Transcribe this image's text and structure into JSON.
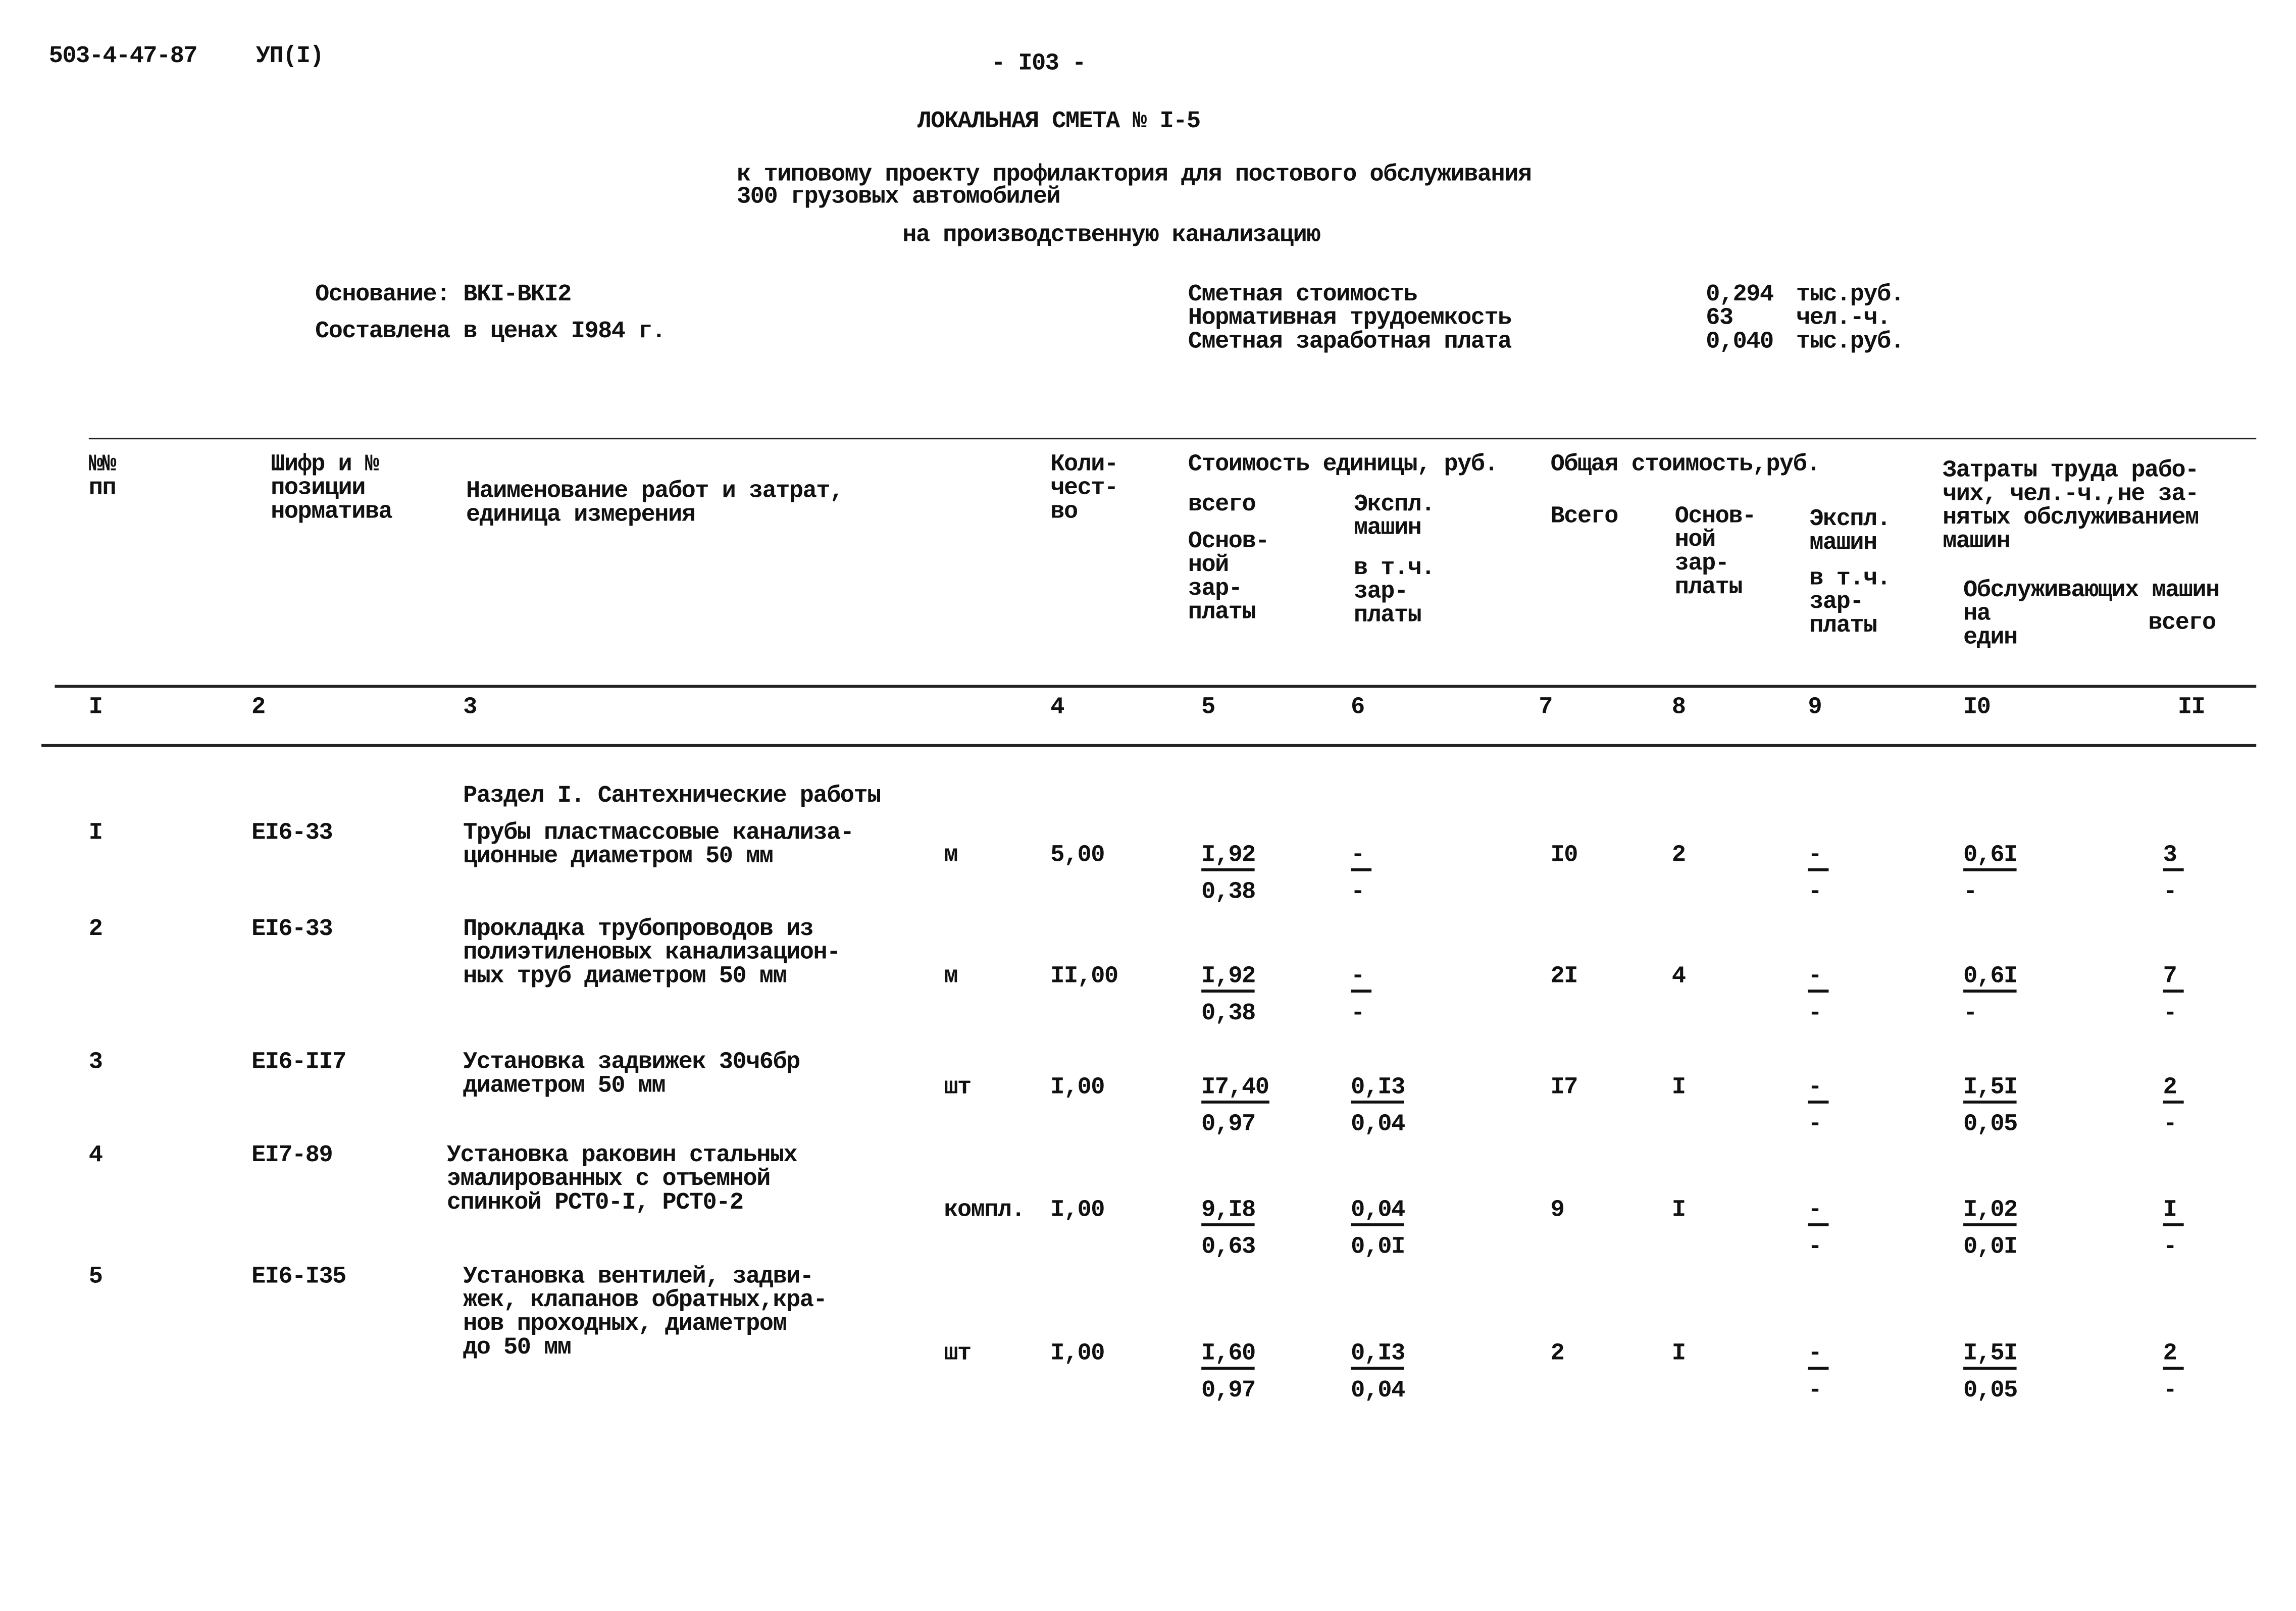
{
  "header": {
    "doc_code": "503-4-47-87",
    "album": "УП(I)",
    "page_no": "- I03 -"
  },
  "title": "ЛОКАЛЬНАЯ СМЕТА № I-5",
  "subtitle_lines": [
    "к типовому проекту профилактория для постового обслуживания",
    "300 грузовых автомобилей"
  ],
  "subtitle2": "на производственную канализацию",
  "basis": "Основание: ВКI-ВКI2",
  "prices": "Составлена в ценах I984 г.",
  "summary": [
    {
      "label": "Сметная стоимость",
      "value": "0,294",
      "unit": "тыс.руб."
    },
    {
      "label": "Нормативная трудоемкость",
      "value": "63",
      "unit": "чел.-ч."
    },
    {
      "label": "Сметная заработная плата",
      "value": "0,040",
      "unit": "тыс.руб."
    }
  ],
  "columns": {
    "c1": "№№\nпп",
    "c2": "Шифр и №\nпозиции\nнорматива",
    "c3": "Наименование работ и затрат,\nединица измерения",
    "c4": "Коли-\nчест-\nво",
    "unit_cost": "Стоимость единицы, руб.",
    "total_cost": "Общая стоимость,руб.",
    "labor": "Затраты труда рабо-\nчих, чел.-ч.,не за-\nнятых обслуживанием\nмашин",
    "c5": "всего",
    "c5b": "Основ-\nной\nзар-\nплаты",
    "c6": "Экспл.\nмашин",
    "c6b": "в т.ч.\nзар-\nплаты",
    "c7": "Всего",
    "c8": "Основ-\nной\nзар-\nплаты",
    "c9": "Экспл.\nмашин",
    "c9b": "в т.ч.\nзар-\nплаты",
    "c10": "Обслуживающих машин\nна\nедин",
    "c11": "всего",
    "numbers": [
      "I",
      "2",
      "3",
      "4",
      "5",
      "6",
      "7",
      "8",
      "9",
      "I0",
      "II"
    ]
  },
  "section": "Раздел I. Сантехнические работы",
  "rows": [
    {
      "no": "I",
      "code": "EI6-33",
      "name": "Трубы пластмассовые канализа-\nционные диаметром 50 мм",
      "unit": "м",
      "qty": "5,00",
      "c5": [
        "I,92",
        "0,38"
      ],
      "c6": [
        "-",
        "-"
      ],
      "c7": "I0",
      "c8": "2",
      "c9": [
        "-",
        "-"
      ],
      "c10": [
        "0,6I",
        "-"
      ],
      "c11": [
        "3",
        "-"
      ]
    },
    {
      "no": "2",
      "code": "EI6-33",
      "name": "Прокладка трубопроводов из\nполиэтиленовых канализацион-\nных труб диаметром 50 мм",
      "unit": "м",
      "qty": "II,00",
      "c5": [
        "I,92",
        "0,38"
      ],
      "c6": [
        "-",
        "-"
      ],
      "c7": "2I",
      "c8": "4",
      "c9": [
        "-",
        "-"
      ],
      "c10": [
        "0,6I",
        "-"
      ],
      "c11": [
        "7",
        "-"
      ]
    },
    {
      "no": "3",
      "code": "EI6-II7",
      "name": "Установка задвижек 30ч6бр\nдиаметром 50 мм",
      "unit": "шт",
      "qty": "I,00",
      "c5": [
        "I7,40",
        "0,97"
      ],
      "c6": [
        "0,I3",
        "0,04"
      ],
      "c7": "I7",
      "c8": "I",
      "c9": [
        "-",
        "-"
      ],
      "c10": [
        "I,5I",
        "0,05"
      ],
      "c11": [
        "2",
        "-"
      ]
    },
    {
      "no": "4",
      "code": "EI7-89",
      "name": "Установка раковин стальных\nэмалированных с отъемной\nспинкой РСТ0-I, РСТ0-2",
      "unit": "компл.",
      "qty": "I,00",
      "c5": [
        "9,I8",
        "0,63"
      ],
      "c6": [
        "0,04",
        "0,0I"
      ],
      "c7": "9",
      "c8": "I",
      "c9": [
        "-",
        "-"
      ],
      "c10": [
        "I,02",
        "0,0I"
      ],
      "c11": [
        "I",
        "-"
      ]
    },
    {
      "no": "5",
      "code": "EI6-I35",
      "name": "Установка вентилей, задви-\nжек, клапанов обратных,кра-\nнов проходных, диаметром\nдо 50 мм",
      "unit": "шт",
      "qty": "I,00",
      "c5": [
        "I,60",
        "0,97"
      ],
      "c6": [
        "0,I3",
        "0,04"
      ],
      "c7": "2",
      "c8": "I",
      "c9": [
        "-",
        "-"
      ],
      "c10": [
        "I,5I",
        "0,05"
      ],
      "c11": [
        "2",
        "-"
      ]
    }
  ]
}
